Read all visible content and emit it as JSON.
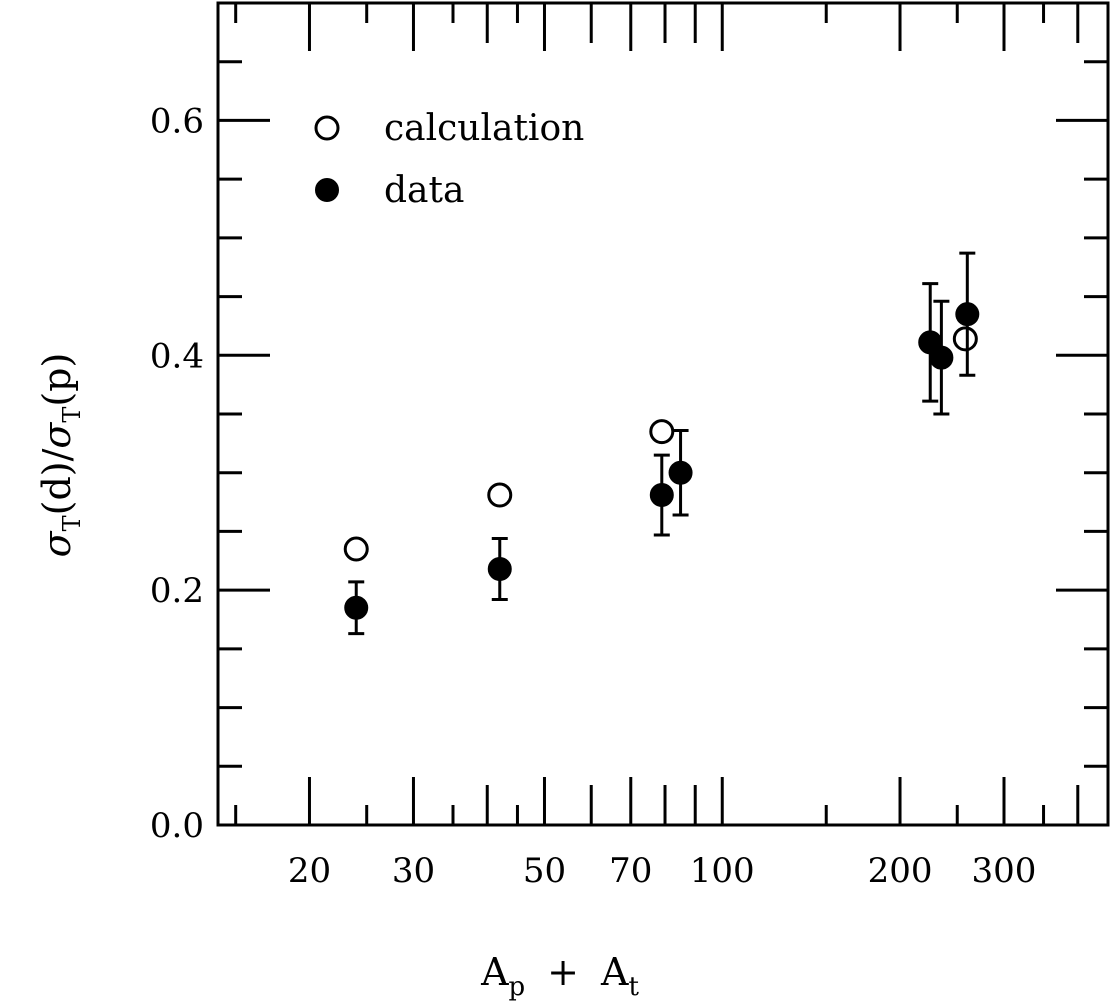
{
  "chart_data": {
    "type": "scatter",
    "title": "",
    "xlabel": {
      "main": "A",
      "sub1": "p",
      "plus": "+",
      "main2": "A",
      "sub2": "t"
    },
    "ylabel": {
      "sigma": "σ",
      "sub": "T",
      "d": "(d)/",
      "sigma2": "σ",
      "sub2": "T",
      "p": "(p)"
    },
    "x_scale": "log",
    "xlim": [
      14,
      450
    ],
    "ylim": [
      0,
      0.7
    ],
    "x_ticks": [
      20,
      30,
      50,
      70,
      100,
      200,
      300
    ],
    "x_tick_labels": [
      "20",
      "30",
      "50",
      "70",
      "100",
      "200",
      "300"
    ],
    "y_ticks": [
      0.0,
      0.2,
      0.4,
      0.6
    ],
    "y_tick_labels": [
      "0.0",
      "0.2",
      "0.4",
      "0.6"
    ],
    "grid": false,
    "legend_position": "top-left",
    "series": [
      {
        "name": "calculation",
        "marker": "open-circle",
        "points": [
          {
            "x": 24,
            "y": 0.235
          },
          {
            "x": 42,
            "y": 0.281
          },
          {
            "x": 79,
            "y": 0.335
          },
          {
            "x": 258,
            "y": 0.414
          }
        ]
      },
      {
        "name": "data",
        "marker": "filled-circle",
        "points": [
          {
            "x": 24,
            "y": 0.185,
            "err": 0.022
          },
          {
            "x": 42,
            "y": 0.218,
            "err": 0.026
          },
          {
            "x": 79,
            "y": 0.281,
            "err": 0.034
          },
          {
            "x": 85,
            "y": 0.3,
            "err": 0.036
          },
          {
            "x": 225,
            "y": 0.411,
            "err": 0.05
          },
          {
            "x": 235,
            "y": 0.398,
            "err": 0.048
          },
          {
            "x": 260,
            "y": 0.435,
            "err": 0.052
          }
        ]
      }
    ]
  }
}
